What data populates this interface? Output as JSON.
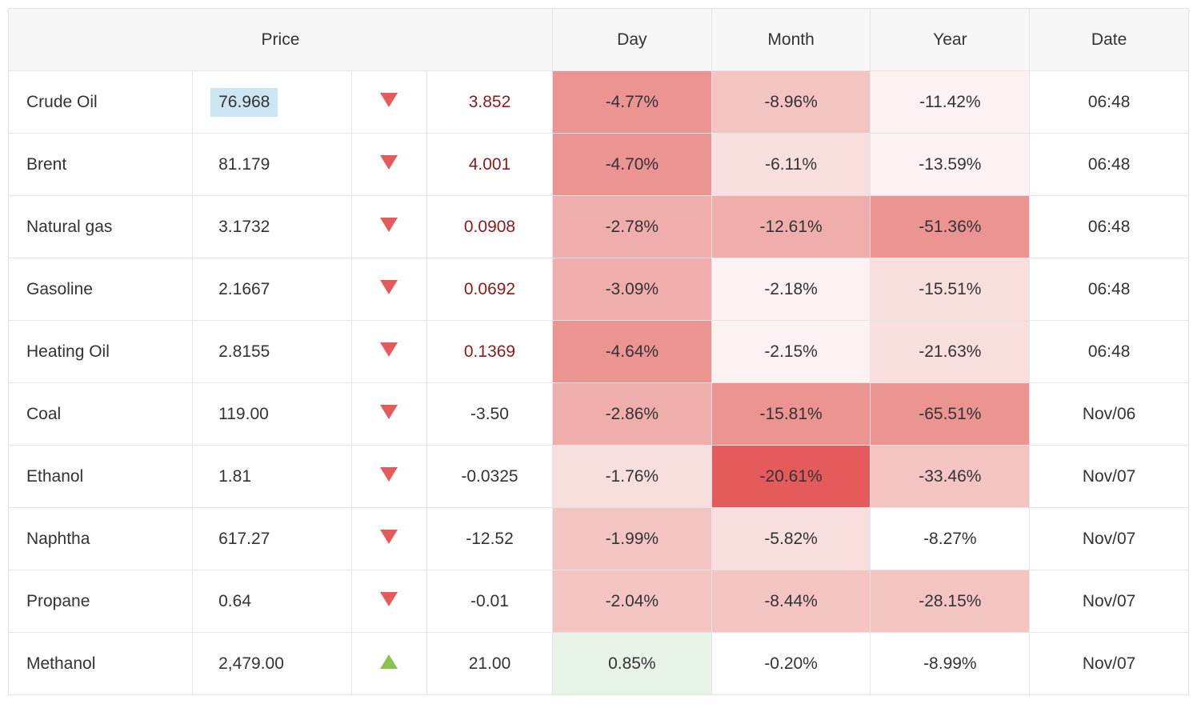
{
  "columns": {
    "price_label": "Price",
    "day_label": "Day",
    "month_label": "Month",
    "year_label": "Year",
    "date_label": "Date"
  },
  "colors": {
    "heat_red_1": "#fdf2f2",
    "heat_red_2": "#f8dedd",
    "heat_red_3": "#f3c4c2",
    "heat_red_4": "#efaeab",
    "heat_red_5": "#eb9491",
    "heat_red_6": "#e55b5b",
    "heat_green_1": "#e8f3e8",
    "none": "#ffffff"
  },
  "rows": [
    {
      "name": "Crude Oil",
      "price": "76.968",
      "price_highlight": true,
      "direction": "down",
      "change": "3.852",
      "change_neg_style": true,
      "day": {
        "text": "-4.77%",
        "bg": "heat_red_5"
      },
      "month": {
        "text": "-8.96%",
        "bg": "heat_red_3"
      },
      "year": {
        "text": "-11.42%",
        "bg": "heat_red_1"
      },
      "date": "06:48"
    },
    {
      "name": "Brent",
      "price": "81.179",
      "price_highlight": false,
      "direction": "down",
      "change": "4.001",
      "change_neg_style": true,
      "day": {
        "text": "-4.70%",
        "bg": "heat_red_5"
      },
      "month": {
        "text": "-6.11%",
        "bg": "heat_red_2"
      },
      "year": {
        "text": "-13.59%",
        "bg": "heat_red_1"
      },
      "date": "06:48"
    },
    {
      "name": "Natural gas",
      "price": "3.1732",
      "price_highlight": false,
      "direction": "down",
      "change": "0.0908",
      "change_neg_style": true,
      "day": {
        "text": "-2.78%",
        "bg": "heat_red_4"
      },
      "month": {
        "text": "-12.61%",
        "bg": "heat_red_4"
      },
      "year": {
        "text": "-51.36%",
        "bg": "heat_red_5"
      },
      "date": "06:48"
    },
    {
      "name": "Gasoline",
      "price": "2.1667",
      "price_highlight": false,
      "direction": "down",
      "change": "0.0692",
      "change_neg_style": true,
      "day": {
        "text": "-3.09%",
        "bg": "heat_red_4"
      },
      "month": {
        "text": "-2.18%",
        "bg": "heat_red_1"
      },
      "year": {
        "text": "-15.51%",
        "bg": "heat_red_2"
      },
      "date": "06:48"
    },
    {
      "name": "Heating Oil",
      "price": "2.8155",
      "price_highlight": false,
      "direction": "down",
      "change": "0.1369",
      "change_neg_style": true,
      "day": {
        "text": "-4.64%",
        "bg": "heat_red_5"
      },
      "month": {
        "text": "-2.15%",
        "bg": "heat_red_1"
      },
      "year": {
        "text": "-21.63%",
        "bg": "heat_red_2"
      },
      "date": "06:48"
    },
    {
      "name": "Coal",
      "price": "119.00",
      "price_highlight": false,
      "direction": "down",
      "change": "-3.50",
      "change_neg_style": false,
      "day": {
        "text": "-2.86%",
        "bg": "heat_red_4"
      },
      "month": {
        "text": "-15.81%",
        "bg": "heat_red_5"
      },
      "year": {
        "text": "-65.51%",
        "bg": "heat_red_5"
      },
      "date": "Nov/06"
    },
    {
      "name": "Ethanol",
      "price": "1.81",
      "price_highlight": false,
      "direction": "down",
      "change": "-0.0325",
      "change_neg_style": false,
      "day": {
        "text": "-1.76%",
        "bg": "heat_red_2"
      },
      "month": {
        "text": "-20.61%",
        "bg": "heat_red_6"
      },
      "year": {
        "text": "-33.46%",
        "bg": "heat_red_3"
      },
      "date": "Nov/07"
    },
    {
      "name": "Naphtha",
      "price": "617.27",
      "price_highlight": false,
      "direction": "down",
      "change": "-12.52",
      "change_neg_style": false,
      "day": {
        "text": "-1.99%",
        "bg": "heat_red_3"
      },
      "month": {
        "text": "-5.82%",
        "bg": "heat_red_2"
      },
      "year": {
        "text": "-8.27%",
        "bg": "none"
      },
      "date": "Nov/07"
    },
    {
      "name": "Propane",
      "price": "0.64",
      "price_highlight": false,
      "direction": "down",
      "change": "-0.01",
      "change_neg_style": false,
      "day": {
        "text": "-2.04%",
        "bg": "heat_red_3"
      },
      "month": {
        "text": "-8.44%",
        "bg": "heat_red_3"
      },
      "year": {
        "text": "-28.15%",
        "bg": "heat_red_3"
      },
      "date": "Nov/07"
    },
    {
      "name": "Methanol",
      "price": "2,479.00",
      "price_highlight": false,
      "direction": "up",
      "change": "21.00",
      "change_neg_style": false,
      "day": {
        "text": "0.85%",
        "bg": "heat_green_1"
      },
      "month": {
        "text": "-0.20%",
        "bg": "none"
      },
      "year": {
        "text": "-8.99%",
        "bg": "none"
      },
      "date": "Nov/07"
    }
  ]
}
